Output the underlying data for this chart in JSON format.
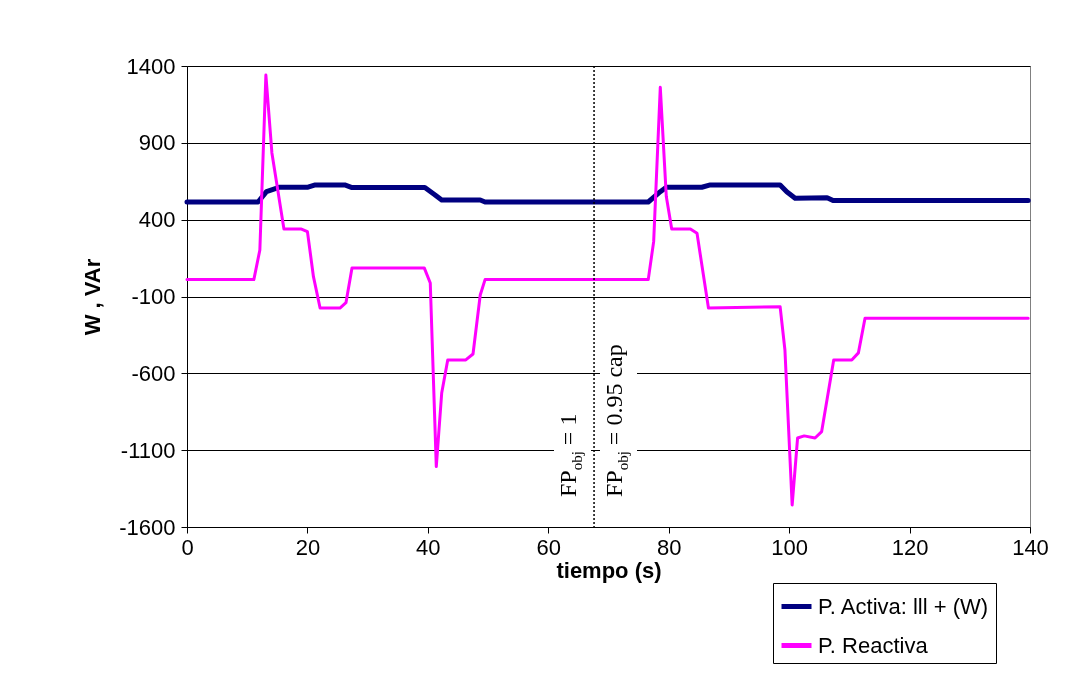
{
  "chart_data": {
    "type": "line",
    "xlabel": "tiempo (s)",
    "ylabel": "W , VAr",
    "xlim": [
      0,
      140
    ],
    "xticks": [
      0,
      20,
      40,
      60,
      80,
      100,
      120,
      140
    ],
    "ylim": [
      -1600,
      1400
    ],
    "yticks": [
      -1600,
      -1100,
      -600,
      -100,
      400,
      900,
      1400
    ],
    "grid": "y",
    "legend": "bottom right",
    "marker": "none",
    "line_style": "solid",
    "series": [
      {
        "name": "P. Activa: lll + (W)",
        "color": "#000080",
        "x": [
          0,
          11.8,
          13.2,
          15.4,
          20.1,
          21.3,
          26.2,
          27.4,
          39.5,
          41.2,
          42.3,
          48.7,
          49.5,
          76.6,
          78.6,
          79.6,
          85.5,
          86.9,
          98.5,
          99.6,
          101,
          106.3,
          107.3,
          139.7
        ],
        "values": [
          515,
          515,
          582,
          611,
          611,
          626,
          626,
          609,
          609,
          561,
          528,
          528,
          515,
          515,
          582,
          611,
          611,
          626,
          626,
          582,
          539,
          543,
          524,
          524
        ]
      },
      {
        "name": "P. Reactiva",
        "color": "#ff00ff",
        "x": [
          0,
          11.1,
          12.1,
          13.1,
          14.1,
          16.1,
          19.0,
          20.0,
          21.0,
          22.1,
          25.4,
          26.4,
          27.4,
          39.4,
          40.4,
          41.4,
          42.3,
          43.3,
          46.3,
          47.5,
          48.7,
          49.5,
          76.6,
          77.5,
          78.6,
          79.6,
          80.5,
          83.6,
          84.7,
          86.6,
          98.5,
          99.3,
          100.5,
          101.4,
          102.5,
          104.3,
          105.4,
          107.4,
          110.4,
          111.5,
          112.6,
          139.7
        ],
        "values": [
          10,
          10,
          203,
          1341,
          834,
          339,
          339,
          322,
          29,
          -175,
          -175,
          -140,
          86,
          86,
          -12,
          -1207,
          -728,
          -513,
          -513,
          -474,
          -90,
          10,
          10,
          257,
          1261,
          550,
          339,
          339,
          311,
          -175,
          -166,
          -448,
          -1457,
          -1021,
          -1007,
          -1021,
          -979,
          -513,
          -513,
          -467,
          -242,
          -242
        ]
      }
    ],
    "ref_lines": [
      {
        "axis": "x",
        "value": 67.6,
        "color": "#000000",
        "line_style": "dotted"
      }
    ],
    "annotations": [
      "FP$_{obj}$ = 1",
      "FP$_{obj}$ = 0.95 cap"
    ]
  }
}
